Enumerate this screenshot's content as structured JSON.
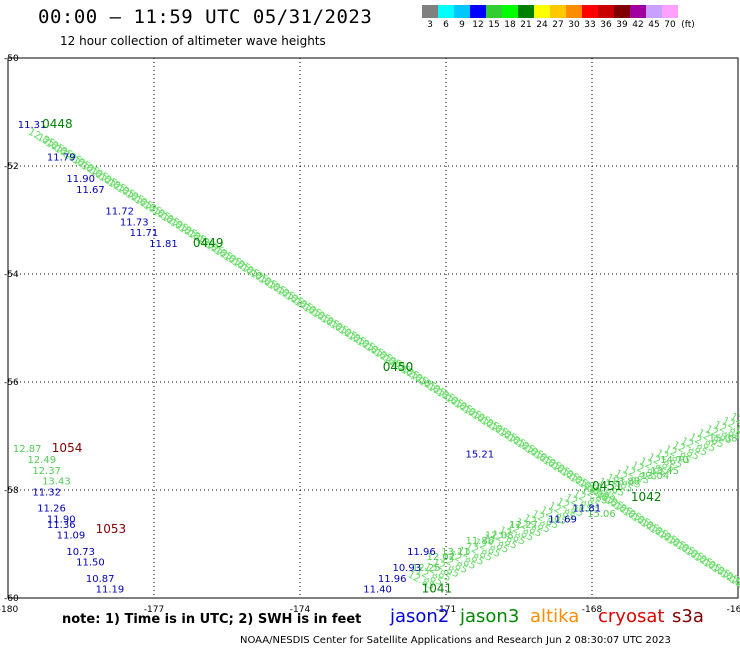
{
  "header": {
    "title": "00:00 – 11:59 UTC 05/31/2023",
    "subtitle": "12 hour collection of altimeter wave heights"
  },
  "colorbar": {
    "colors": [
      "#808080",
      "#00ffff",
      "#00c8ff",
      "#0000ff",
      "#32cd32",
      "#00ff00",
      "#008000",
      "#ffff00",
      "#ffc800",
      "#ff8c00",
      "#ff0000",
      "#c80000",
      "#800000",
      "#a000a0",
      "#c8a0ff",
      "#ffa0ff"
    ],
    "labels": [
      "3",
      "6",
      "9",
      "12",
      "15",
      "18",
      "21",
      "24",
      "27",
      "30",
      "33",
      "36",
      "39",
      "42",
      "45",
      "70"
    ],
    "unit": "(ft)"
  },
  "axes": {
    "lon_labels": [
      "-180",
      "-177",
      "-174",
      "-171",
      "-168",
      "-16"
    ],
    "lat_labels": [
      "-50",
      "-52",
      "-54",
      "-56",
      "-58",
      "-60"
    ]
  },
  "note": "note: 1) Time is in UTC; 2) SWH is in feet",
  "legend": [
    {
      "label": "jason2",
      "color": "#0000dd"
    },
    {
      "label": "jason3",
      "color": "#008800"
    },
    {
      "label": "altika",
      "color": "#ff8c00"
    },
    {
      "label": "cryosat",
      "color": "#dd0000"
    },
    {
      "label": "s3a",
      "color": "#800000"
    }
  ],
  "footer": "NOAA/NESDIS Center for Satellite Applications and Research    Jun  2 08:30:07 UTC 2023",
  "chart_data": {
    "type": "scatter",
    "xlim": [
      -180,
      -165
    ],
    "ylim": [
      -60,
      -50
    ],
    "time_labels": [
      {
        "text": "0448",
        "color": "#008000",
        "lon": -179.3,
        "lat": -51.3
      },
      {
        "text": "0449",
        "color": "#008000",
        "lon": -176.2,
        "lat": -53.5
      },
      {
        "text": "0450",
        "color": "#008000",
        "lon": -172.3,
        "lat": -55.8
      },
      {
        "text": "0451",
        "color": "#008000",
        "lon": -168.0,
        "lat": -58.0
      },
      {
        "text": "1042",
        "color": "#008000",
        "lon": -167.2,
        "lat": -58.2
      },
      {
        "text": "1041",
        "color": "#008000",
        "lon": -171.5,
        "lat": -59.9
      },
      {
        "text": "1054",
        "color": "#800000",
        "lon": -179.1,
        "lat": -57.3
      },
      {
        "text": "1053",
        "color": "#800000",
        "lon": -178.2,
        "lat": -58.8
      }
    ],
    "blue_values": [
      {
        "text": "11.31",
        "lon": -179.8,
        "lat": -51.3
      },
      {
        "text": "11.79",
        "lon": -179.2,
        "lat": -51.9
      },
      {
        "text": "11.90",
        "lon": -178.8,
        "lat": -52.3
      },
      {
        "text": "11.67",
        "lon": -178.6,
        "lat": -52.5
      },
      {
        "text": "11.72",
        "lon": -178.0,
        "lat": -52.9
      },
      {
        "text": "11.73",
        "lon": -177.7,
        "lat": -53.1
      },
      {
        "text": "11.71",
        "lon": -177.5,
        "lat": -53.3
      },
      {
        "text": "11.81",
        "lon": -177.1,
        "lat": -53.5
      },
      {
        "text": "15.21",
        "lon": -170.6,
        "lat": -57.4
      },
      {
        "text": "11.81",
        "lon": -168.4,
        "lat": -58.4
      },
      {
        "text": "11.69",
        "lon": -168.9,
        "lat": -58.6
      },
      {
        "text": "11.96",
        "lon": -171.8,
        "lat": -59.2
      },
      {
        "text": "10.93",
        "lon": -172.1,
        "lat": -59.5
      },
      {
        "text": "11.96",
        "lon": -172.4,
        "lat": -59.7
      },
      {
        "text": "11.40",
        "lon": -172.7,
        "lat": -59.9
      },
      {
        "text": "11.32",
        "lon": -179.5,
        "lat": -58.1
      },
      {
        "text": "11.26",
        "lon": -179.4,
        "lat": -58.4
      },
      {
        "text": "11.90",
        "lon": -179.2,
        "lat": -58.6
      },
      {
        "text": "11.36",
        "lon": -179.2,
        "lat": -58.7
      },
      {
        "text": "11.09",
        "lon": -179.0,
        "lat": -58.9
      },
      {
        "text": "10.73",
        "lon": -178.8,
        "lat": -59.2
      },
      {
        "text": "11.50",
        "lon": -178.6,
        "lat": -59.4
      },
      {
        "text": "10.87",
        "lon": -178.4,
        "lat": -59.7
      },
      {
        "text": "11.19",
        "lon": -178.2,
        "lat": -59.9
      }
    ],
    "green_values": [
      {
        "text": "12.87",
        "lon": -179.9,
        "lat": -57.3
      },
      {
        "text": "12.49",
        "lon": -179.6,
        "lat": -57.5
      },
      {
        "text": "12.37",
        "lon": -179.5,
        "lat": -57.7
      },
      {
        "text": "13.43",
        "lon": -179.3,
        "lat": -57.9
      },
      {
        "text": "15.06",
        "lon": -168.1,
        "lat": -58.5
      },
      {
        "text": "15.08",
        "lon": -165.6,
        "lat": -57.1
      },
      {
        "text": "12.27",
        "lon": -169.7,
        "lat": -58.7
      },
      {
        "text": "12.08",
        "lon": -170.2,
        "lat": -58.9
      },
      {
        "text": "11.86",
        "lon": -170.6,
        "lat": -59.0
      },
      {
        "text": "13.11",
        "lon": -171.1,
        "lat": -59.2
      },
      {
        "text": "12.02",
        "lon": -171.4,
        "lat": -59.3
      },
      {
        "text": "12.25",
        "lon": -171.7,
        "lat": -59.5
      },
      {
        "text": "13.04",
        "lon": -167.0,
        "lat": -57.8
      },
      {
        "text": "13.45",
        "lon": -166.8,
        "lat": -57.7
      },
      {
        "text": "14.70",
        "lon": -166.6,
        "lat": -57.5
      },
      {
        "text": "13.88",
        "lon": -167.6,
        "lat": -57.9
      }
    ]
  }
}
